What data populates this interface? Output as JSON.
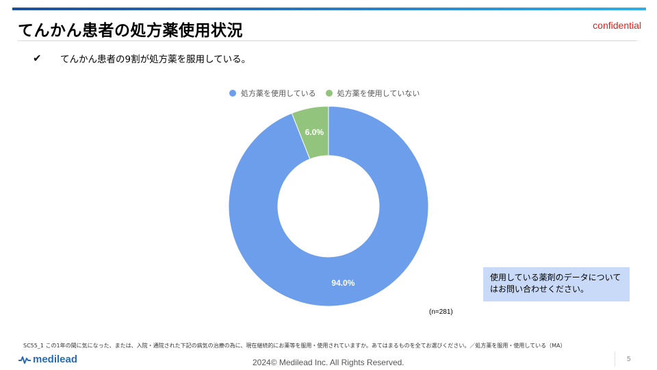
{
  "header": {
    "title": "てんかん患者の処方薬使用状況",
    "confidential": "confidential"
  },
  "bullet": {
    "icon": "check-icon",
    "mark": "✔",
    "text": "てんかん患者の9割が処方薬を服用している。"
  },
  "chart_data": {
    "type": "pie",
    "variant": "donut",
    "categories": [
      "処方薬を使用している",
      "処方薬を使用していない"
    ],
    "values": [
      94.0,
      6.0
    ],
    "data_labels": [
      "94.0%",
      "6.0%"
    ],
    "colors": [
      "#6d9eeb",
      "#93c47d"
    ],
    "legend_position": "top"
  },
  "note_box": {
    "line1": "使用している薬剤のデータについて",
    "line2": "はお問い合わせください。"
  },
  "sample_size": "(n=281)",
  "footnote": "SC55_1  この1年の間に気になった、または、入院・通院された下記の病気の治療の為に、現在継続的にお薬等を服用・使用されていますか。あてはまるものを全てお選びください。／処方薬を服用・使用している（MA）",
  "footer": {
    "logo_text": "medilead",
    "copyright": "2024© Medilead Inc. All Rights Reserved.",
    "page": "5"
  }
}
